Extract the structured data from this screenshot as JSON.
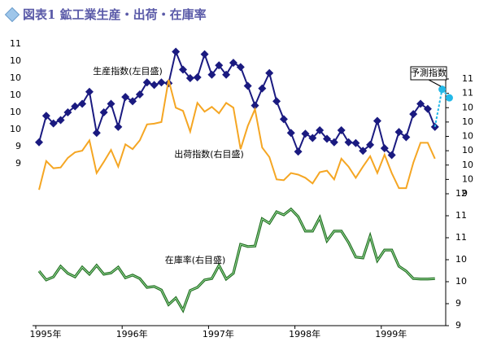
{
  "chart_data": {
    "type": "line",
    "title": "図表1 鉱工業生産・出荷・在庫率",
    "categories": [
      "1995年",
      null,
      null,
      null,
      null,
      null,
      null,
      null,
      null,
      null,
      null,
      null,
      "1996年",
      null,
      null,
      null,
      null,
      null,
      null,
      null,
      null,
      null,
      null,
      null,
      "1997年",
      null,
      null,
      null,
      null,
      null,
      null,
      null,
      null,
      null,
      null,
      null,
      "1998年",
      null,
      null,
      null,
      null,
      null,
      null,
      null,
      null,
      null,
      null,
      null,
      "1999年",
      null,
      null,
      null,
      null,
      null,
      null,
      null,
      null,
      null
    ],
    "ylim": [
      9.2,
      10.6
    ],
    "yticks": [
      {
        "value": 10.6,
        "label": "11"
      },
      {
        "value": 10.4,
        "label": "10"
      },
      {
        "value": 10.2,
        "label": "10"
      },
      {
        "value": 10.0,
        "label": "10"
      },
      {
        "value": 9.8,
        "label": "10"
      },
      {
        "value": 9.6,
        "label": "10"
      },
      {
        "value": 9.4,
        "label": "9"
      },
      {
        "value": 9.2,
        "label": "9"
      }
    ],
    "y2lim": [
      9.36,
      10.8
    ],
    "y2ticks": [
      {
        "value": 10.8,
        "label": "11"
      },
      {
        "value": 10.62,
        "label": "11"
      },
      {
        "value": 10.44,
        "label": "10"
      },
      {
        "value": 10.26,
        "label": "10"
      },
      {
        "value": 10.08,
        "label": "10"
      },
      {
        "value": 9.9,
        "label": "10"
      },
      {
        "value": 9.72,
        "label": "10"
      },
      {
        "value": 9.54,
        "label": "10"
      },
      {
        "value": 9.36,
        "label": "9"
      }
    ],
    "y3lim": [
      8.9,
      11.9
    ],
    "y3ticks": [
      {
        "value": 11.9,
        "label": "12"
      },
      {
        "value": 11.4,
        "label": "11"
      },
      {
        "value": 10.9,
        "label": "11"
      },
      {
        "value": 10.4,
        "label": "10"
      },
      {
        "value": 9.9,
        "label": "10"
      },
      {
        "value": 9.4,
        "label": "9"
      },
      {
        "value": 8.9,
        "label": "9"
      }
    ],
    "series": [
      {
        "name": "生産指数(左目盛)",
        "color": "#1a1a80",
        "axis": "y",
        "marker": "diamond",
        "values": [
          9.45,
          9.76,
          9.67,
          9.71,
          9.8,
          9.87,
          9.9,
          10.04,
          9.56,
          9.8,
          9.9,
          9.63,
          9.98,
          9.93,
          10.01,
          10.15,
          10.12,
          10.15,
          10.14,
          10.51,
          10.3,
          10.2,
          10.21,
          10.48,
          10.24,
          10.35,
          10.24,
          10.38,
          10.33,
          10.11,
          9.88,
          10.08,
          10.26,
          9.93,
          9.72,
          9.56,
          9.34,
          9.55,
          9.5,
          9.59,
          9.49,
          9.45,
          9.59,
          9.45,
          9.44,
          9.35,
          9.42,
          9.7,
          9.38,
          9.3,
          9.57,
          9.51,
          9.78,
          9.9,
          9.84,
          9.63,
          null,
          null
        ]
      },
      {
        "name": "予測指数",
        "color": "#22b8e8",
        "axis": "y",
        "marker": "circle",
        "values": [
          null,
          null,
          null,
          null,
          null,
          null,
          null,
          null,
          null,
          null,
          null,
          null,
          null,
          null,
          null,
          null,
          null,
          null,
          null,
          null,
          null,
          null,
          null,
          null,
          null,
          null,
          null,
          null,
          null,
          null,
          null,
          null,
          null,
          null,
          null,
          null,
          null,
          null,
          null,
          null,
          null,
          null,
          null,
          null,
          null,
          null,
          null,
          null,
          null,
          null,
          null,
          null,
          null,
          null,
          null,
          null,
          10.07,
          9.97
        ]
      },
      {
        "name": "出荷指数(右目盛)",
        "color": "#f5a623",
        "axis": "y2",
        "values": [
          9.41,
          9.77,
          9.68,
          9.69,
          9.81,
          9.88,
          9.9,
          10.03,
          9.62,
          9.76,
          9.91,
          9.7,
          9.98,
          9.92,
          10.03,
          10.23,
          10.24,
          10.26,
          10.79,
          10.44,
          10.4,
          10.14,
          10.5,
          10.39,
          10.45,
          10.37,
          10.5,
          10.44,
          9.92,
          10.21,
          10.42,
          9.94,
          9.82,
          9.54,
          9.53,
          9.62,
          9.6,
          9.56,
          9.49,
          9.63,
          9.65,
          9.54,
          9.8,
          9.7,
          9.56,
          9.7,
          9.83,
          9.62,
          9.85,
          9.62,
          9.43,
          9.43,
          9.75,
          10.0,
          10.0,
          9.8,
          null,
          null
        ]
      },
      {
        "name": "在庫率(右目盛)",
        "color": "#2e9a2e",
        "axis": "y3",
        "values": [
          10.14,
          9.94,
          10.01,
          10.25,
          10.09,
          10.01,
          10.23,
          10.07,
          10.27,
          10.07,
          10.1,
          10.23,
          9.99,
          10.05,
          9.97,
          9.77,
          9.79,
          9.71,
          9.38,
          9.53,
          9.25,
          9.7,
          9.77,
          9.94,
          9.97,
          10.27,
          9.96,
          10.09,
          10.75,
          10.7,
          10.71,
          11.33,
          11.23,
          11.49,
          11.42,
          11.55,
          11.38,
          11.05,
          11.05,
          11.36,
          10.83,
          11.05,
          11.05,
          10.79,
          10.46,
          10.44,
          10.94,
          10.38,
          10.62,
          10.62,
          10.25,
          10.14,
          9.97,
          9.96,
          9.96,
          9.97,
          null,
          null
        ]
      }
    ]
  }
}
